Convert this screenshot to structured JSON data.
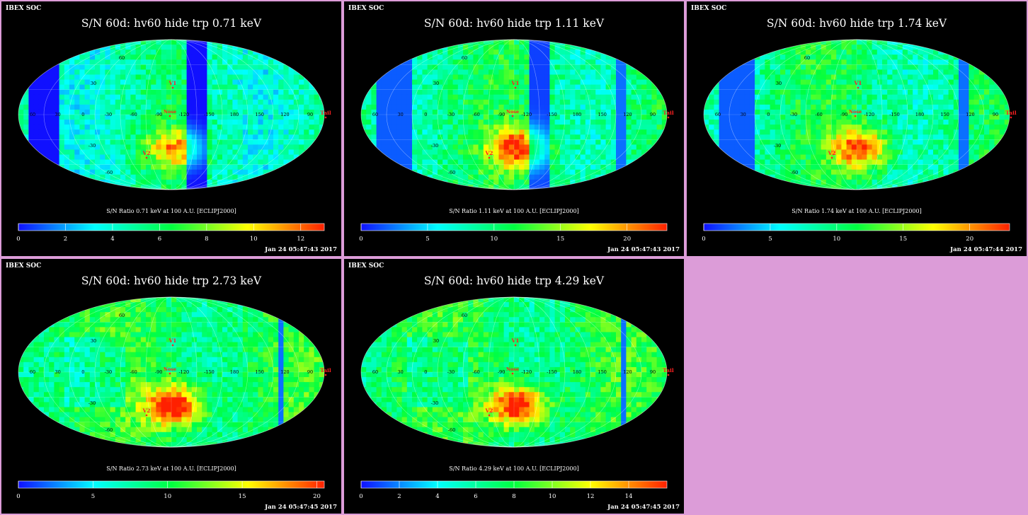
{
  "colors": {
    "page_background": "#dc9cd8",
    "panel_background": "#000000",
    "marker_color": "#ff2020",
    "text_color": "#ffffff"
  },
  "colormap": [
    "#1010ff",
    "#00ffff",
    "#00ff40",
    "#ffff00",
    "#ff2000"
  ],
  "panels": [
    {
      "header": "IBEX SOC",
      "title": "S/N  60d: hv60 hide trp 0.71 keV",
      "colorbar_label": "S/N Ratio 0.71 keV at 100 A.U. [ECLIPJ2000]",
      "timestamp": "Jan 24 05:47:43 2017",
      "chart_data": {
        "type": "heatmap",
        "projection": "mollweide sky map",
        "energy_keV": 0.71,
        "colorbar_ticks": [
          "0",
          "2",
          "4",
          "6",
          "8",
          "10",
          "12"
        ],
        "colorbar_range": [
          0,
          13
        ],
        "level_profile": "low",
        "markers": [
          "V1",
          "V2",
          "Nose",
          "Tail"
        ],
        "longitude_labels": [
          "60",
          "30",
          "0",
          "-30",
          "-60",
          "-90",
          "-120",
          "-150",
          "180",
          "150",
          "120",
          "90"
        ],
        "latitude_labels": [
          "60",
          "30",
          "-30",
          "-60"
        ]
      }
    },
    {
      "header": "IBEX SOC",
      "title": "S/N  60d: hv60 hide trp 1.11 keV",
      "colorbar_label": "S/N Ratio 1.11 keV at 100 A.U. [ECLIPJ2000]",
      "timestamp": "Jan 24 05:47:43 2017",
      "chart_data": {
        "type": "heatmap",
        "projection": "mollweide sky map",
        "energy_keV": 1.11,
        "colorbar_ticks": [
          "0",
          "5",
          "10",
          "15",
          "20"
        ],
        "colorbar_range": [
          0,
          23
        ],
        "level_profile": "mid",
        "markers": [
          "V1",
          "V2",
          "Nose",
          "Tail"
        ],
        "longitude_labels": [
          "60",
          "30",
          "0",
          "-30",
          "-60",
          "-90",
          "-120",
          "-150",
          "180",
          "150",
          "120",
          "90"
        ],
        "latitude_labels": [
          "60",
          "30",
          "-30",
          "-60"
        ]
      }
    },
    {
      "header": "IBEX SOC",
      "title": "S/N  60d: hv60 hide trp 1.74 keV",
      "colorbar_label": "S/N Ratio 1.74 keV at 100 A.U. [ECLIPJ2000]",
      "timestamp": "Jan 24 05:47:44 2017",
      "chart_data": {
        "type": "heatmap",
        "projection": "mollweide sky map",
        "energy_keV": 1.74,
        "colorbar_ticks": [
          "0",
          "5",
          "10",
          "15",
          "20"
        ],
        "colorbar_range": [
          0,
          23
        ],
        "level_profile": "mid",
        "markers": [
          "V1",
          "V2",
          "Nose",
          "Tail"
        ],
        "longitude_labels": [
          "60",
          "30",
          "0",
          "-30",
          "-60",
          "-90",
          "-120",
          "-150",
          "180",
          "150",
          "120",
          "90"
        ],
        "latitude_labels": [
          "60",
          "30",
          "-30",
          "-60"
        ]
      }
    },
    {
      "header": "IBEX SOC",
      "title": "S/N  60d: hv60 hide trp 2.73 keV",
      "colorbar_label": "S/N Ratio 2.73 keV at 100 A.U. [ECLIPJ2000]",
      "timestamp": "Jan 24 05:47:45 2017",
      "chart_data": {
        "type": "heatmap",
        "projection": "mollweide sky map",
        "energy_keV": 2.73,
        "colorbar_ticks": [
          "0",
          "5",
          "10",
          "15",
          "20"
        ],
        "colorbar_range": [
          0,
          20.5
        ],
        "level_profile": "high",
        "markers": [
          "V1",
          "V2",
          "Nose",
          "Tail"
        ],
        "longitude_labels": [
          "60",
          "30",
          "0",
          "-30",
          "-60",
          "-90",
          "-120",
          "-150",
          "180",
          "150",
          "120",
          "90"
        ],
        "latitude_labels": [
          "60",
          "30",
          "-30",
          "-60"
        ]
      }
    },
    {
      "header": "IBEX SOC",
      "title": "S/N  60d: hv60 hide trp 4.29 keV",
      "colorbar_label": "S/N Ratio 4.29 keV at 100 A.U. [ECLIPJ2000]",
      "timestamp": "Jan 24 05:47:45 2017",
      "chart_data": {
        "type": "heatmap",
        "projection": "mollweide sky map",
        "energy_keV": 4.29,
        "colorbar_ticks": [
          "0",
          "2",
          "4",
          "6",
          "8",
          "10",
          "12",
          "14"
        ],
        "colorbar_range": [
          0,
          16
        ],
        "level_profile": "high",
        "markers": [
          "V1",
          "V2",
          "Nose",
          "Tail"
        ],
        "longitude_labels": [
          "60",
          "30",
          "0",
          "-30",
          "-60",
          "-90",
          "-120",
          "-150",
          "180",
          "150",
          "120",
          "90"
        ],
        "latitude_labels": [
          "60",
          "30",
          "-30",
          "-60"
        ]
      }
    }
  ]
}
